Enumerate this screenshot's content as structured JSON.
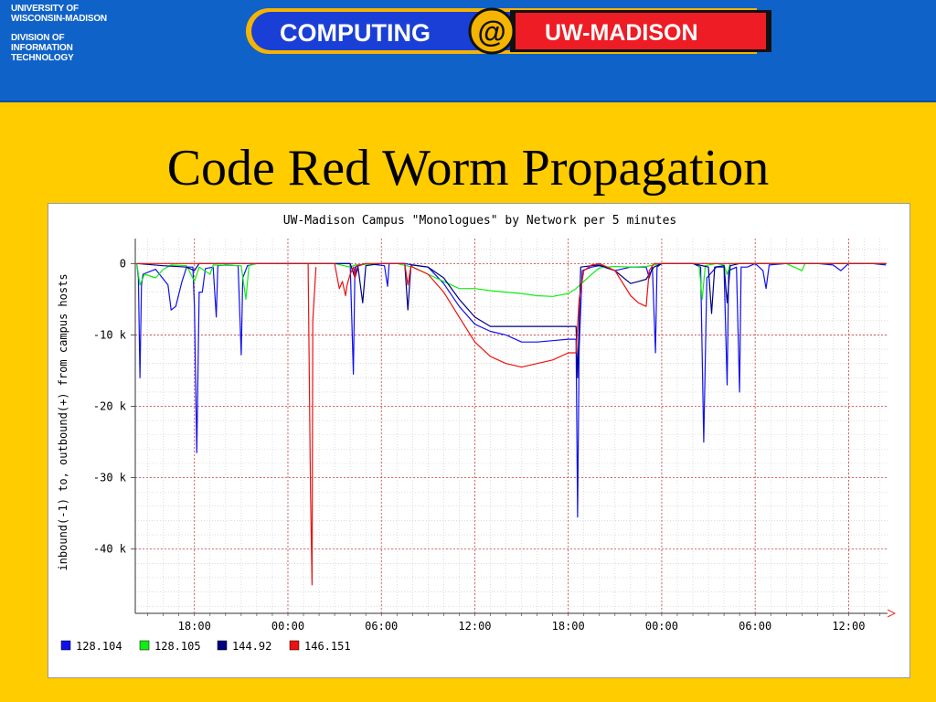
{
  "header": {
    "university_line1": "UNIVERSITY OF",
    "university_line2": "WISCONSIN-MADISON",
    "division_line1": "DIVISION OF",
    "division_line2": "INFORMATION",
    "division_line3": "TECHNOLOGY",
    "logo_left": "COMPUTING",
    "logo_at": "@",
    "logo_right": "UW-MADISON"
  },
  "slide": {
    "title": "Code Red Worm Propagation"
  },
  "colors": {
    "background": "#ffcc00",
    "banner": "#0f62c8",
    "logo_blue": "#1a3fd6",
    "logo_red": "#ee1c24",
    "logo_gold": "#f5b400"
  },
  "chart_data": {
    "type": "line",
    "title": "UW-Madison Campus \"Monologues\" by Network per 5 minutes",
    "ylabel": "inbound(-1) to, outbound(+) from campus hosts",
    "xlabel": "",
    "x_ticks": [
      "18:00",
      "00:00",
      "06:00",
      "12:00",
      "18:00",
      "00:00",
      "06:00",
      "12:00"
    ],
    "x_tick_hours": [
      18,
      24,
      30,
      36,
      42,
      48,
      54,
      60
    ],
    "xlim": [
      14.2,
      62.5
    ],
    "y_ticks": [
      0,
      -10000,
      -20000,
      -30000,
      -40000
    ],
    "y_tick_labels": [
      "0",
      "-10 k",
      "-20 k",
      "-30 k",
      "-40 k"
    ],
    "ylim": [
      -49000,
      3500
    ],
    "grid": true,
    "legend_position": "bottom",
    "series": [
      {
        "name": "128.104",
        "color": "#1010ee",
        "points": [
          [
            14.3,
            0
          ],
          [
            14.4,
            -2000
          ],
          [
            14.5,
            -16000
          ],
          [
            14.6,
            -3000
          ],
          [
            14.7,
            -1500
          ],
          [
            15.5,
            -800
          ],
          [
            16.3,
            -3000
          ],
          [
            16.5,
            -6500
          ],
          [
            16.8,
            -6000
          ],
          [
            17.2,
            -2500
          ],
          [
            17.5,
            -500
          ],
          [
            17.9,
            -500
          ],
          [
            18,
            -6000
          ],
          [
            18.15,
            -26500
          ],
          [
            18.3,
            -4000
          ],
          [
            18.5,
            -4000
          ],
          [
            18.7,
            -700
          ],
          [
            19.2,
            -500
          ],
          [
            19.4,
            -7500
          ],
          [
            19.5,
            -300
          ],
          [
            20,
            -200
          ],
          [
            20.8,
            -300
          ],
          [
            21,
            -12800
          ],
          [
            21.1,
            -2000
          ],
          [
            21.4,
            -300
          ],
          [
            22,
            0
          ],
          [
            24,
            0
          ],
          [
            28,
            0
          ],
          [
            28.2,
            -15500
          ],
          [
            28.3,
            -500
          ],
          [
            29,
            0
          ],
          [
            30.2,
            -300
          ],
          [
            30.4,
            -3200
          ],
          [
            30.5,
            0
          ],
          [
            31.5,
            0
          ],
          [
            32,
            -200
          ],
          [
            33,
            -500
          ],
          [
            34,
            -2800
          ],
          [
            35,
            -6000
          ],
          [
            36,
            -8500
          ],
          [
            37,
            -9500
          ],
          [
            38,
            -10000
          ],
          [
            39,
            -11000
          ],
          [
            40,
            -11000
          ],
          [
            41,
            -10800
          ],
          [
            42,
            -10600
          ],
          [
            42.5,
            -10600
          ],
          [
            42.6,
            -35500
          ],
          [
            42.7,
            -12000
          ],
          [
            42.9,
            -1000
          ],
          [
            43.5,
            -500
          ],
          [
            44,
            -300
          ],
          [
            45,
            -1000
          ],
          [
            46,
            -500
          ],
          [
            47,
            -500
          ],
          [
            47.2,
            -2000
          ],
          [
            47.4,
            -500
          ],
          [
            47.6,
            -12500
          ],
          [
            47.7,
            -500
          ],
          [
            48,
            0
          ],
          [
            50,
            0
          ],
          [
            50.5,
            -500
          ],
          [
            50.7,
            -25000
          ],
          [
            50.9,
            -2000
          ],
          [
            51.5,
            -500
          ],
          [
            52,
            -500
          ],
          [
            52.2,
            -17000
          ],
          [
            52.3,
            -1000
          ],
          [
            52.8,
            -500
          ],
          [
            53,
            -18000
          ],
          [
            53.1,
            -500
          ],
          [
            53.5,
            -500
          ],
          [
            54,
            0
          ],
          [
            54.5,
            -1000
          ],
          [
            54.7,
            -3500
          ],
          [
            54.9,
            -200
          ],
          [
            56,
            0
          ],
          [
            58,
            0
          ],
          [
            59,
            -200
          ],
          [
            59.5,
            -1000
          ],
          [
            60,
            0
          ],
          [
            61.5,
            0
          ],
          [
            62.4,
            -200
          ]
        ]
      },
      {
        "name": "128.105",
        "color": "#11ee11",
        "points": [
          [
            14.3,
            0
          ],
          [
            14.5,
            -3000
          ],
          [
            14.8,
            -1500
          ],
          [
            15.5,
            -2000
          ],
          [
            16,
            -800
          ],
          [
            16.5,
            -200
          ],
          [
            17.5,
            -300
          ],
          [
            18,
            -2500
          ],
          [
            18.3,
            -500
          ],
          [
            19,
            -1500
          ],
          [
            19.2,
            -200
          ],
          [
            21,
            -300
          ],
          [
            21.3,
            -5000
          ],
          [
            21.5,
            -300
          ],
          [
            22,
            0
          ],
          [
            24,
            0
          ],
          [
            27,
            0
          ],
          [
            28,
            -500
          ],
          [
            28.3,
            -200
          ],
          [
            30,
            0
          ],
          [
            31,
            0
          ],
          [
            32,
            -500
          ],
          [
            33,
            -1500
          ],
          [
            34,
            -2500
          ],
          [
            35,
            -3500
          ],
          [
            36,
            -3500
          ],
          [
            37,
            -3800
          ],
          [
            38,
            -4000
          ],
          [
            39,
            -4200
          ],
          [
            40,
            -4500
          ],
          [
            41,
            -4600
          ],
          [
            42,
            -4200
          ],
          [
            42.5,
            -3500
          ],
          [
            43,
            -2500
          ],
          [
            43.5,
            -1500
          ],
          [
            44,
            -600
          ],
          [
            45,
            -400
          ],
          [
            46,
            -500
          ],
          [
            47,
            -400
          ],
          [
            48,
            0
          ],
          [
            50,
            0
          ],
          [
            50.4,
            -200
          ],
          [
            50.6,
            -5000
          ],
          [
            50.8,
            -300
          ],
          [
            51.5,
            0
          ],
          [
            52,
            -200
          ],
          [
            52.2,
            -1500
          ],
          [
            52.4,
            0
          ],
          [
            54,
            0
          ],
          [
            56,
            0
          ],
          [
            57,
            -1000
          ],
          [
            57.2,
            0
          ],
          [
            60,
            0
          ],
          [
            62.4,
            0
          ]
        ]
      },
      {
        "name": "144.92",
        "color": "#000080",
        "points": [
          [
            14.3,
            0
          ],
          [
            16,
            -300
          ],
          [
            17.5,
            -500
          ],
          [
            18,
            -1000
          ],
          [
            18.3,
            0
          ],
          [
            20,
            0
          ],
          [
            22,
            0
          ],
          [
            24,
            0
          ],
          [
            28,
            0
          ],
          [
            28.3,
            -2000
          ],
          [
            28.5,
            -500
          ],
          [
            28.8,
            -5500
          ],
          [
            29,
            -300
          ],
          [
            30,
            0
          ],
          [
            31.5,
            0
          ],
          [
            31.7,
            -6500
          ],
          [
            31.9,
            -300
          ],
          [
            32,
            -200
          ],
          [
            33,
            -500
          ],
          [
            34,
            -2000
          ],
          [
            35,
            -5000
          ],
          [
            36,
            -7500
          ],
          [
            37,
            -8800
          ],
          [
            38,
            -8800
          ],
          [
            39,
            -8800
          ],
          [
            40,
            -8800
          ],
          [
            41,
            -8800
          ],
          [
            42,
            -8800
          ],
          [
            42.5,
            -8800
          ],
          [
            42.6,
            -16000
          ],
          [
            42.8,
            -500
          ],
          [
            43.5,
            -300
          ],
          [
            44,
            -200
          ],
          [
            45,
            -1000
          ],
          [
            46,
            -2800
          ],
          [
            46.5,
            -2500
          ],
          [
            47,
            -2200
          ],
          [
            47.5,
            -500
          ],
          [
            48,
            0
          ],
          [
            50,
            0
          ],
          [
            51,
            -500
          ],
          [
            51.2,
            -7000
          ],
          [
            51.4,
            -500
          ],
          [
            52,
            -300
          ],
          [
            52.2,
            -5500
          ],
          [
            52.4,
            -300
          ],
          [
            53,
            0
          ],
          [
            54,
            0
          ],
          [
            56,
            0
          ],
          [
            58,
            0
          ],
          [
            60,
            0
          ],
          [
            62.4,
            0
          ]
        ]
      },
      {
        "name": "146.151",
        "color": "#ee1111",
        "points": [
          [
            14.3,
            0
          ],
          [
            16,
            0
          ],
          [
            18,
            0
          ],
          [
            20,
            0
          ],
          [
            22,
            0
          ],
          [
            24,
            0
          ],
          [
            27,
            0
          ],
          [
            27.3,
            -3500
          ],
          [
            27.5,
            -2500
          ],
          [
            27.7,
            -4500
          ],
          [
            27.8,
            -3000
          ],
          [
            28,
            -1500
          ],
          [
            28.2,
            -500
          ],
          [
            28.3,
            -2000
          ],
          [
            28.4,
            -300
          ],
          [
            29,
            0
          ],
          [
            30,
            0
          ],
          [
            31.5,
            0
          ],
          [
            31.7,
            -3000
          ],
          [
            31.9,
            -300
          ],
          [
            32,
            -500
          ],
          [
            33,
            -1500
          ],
          [
            34,
            -4000
          ],
          [
            35,
            -7500
          ],
          [
            36,
            -11000
          ],
          [
            37,
            -13000
          ],
          [
            38,
            -14000
          ],
          [
            39,
            -14500
          ],
          [
            40,
            -14000
          ],
          [
            41,
            -13500
          ],
          [
            42,
            -12500
          ],
          [
            42.5,
            -12500
          ],
          [
            42.7,
            -5000
          ],
          [
            43,
            -1000
          ],
          [
            43.5,
            -200
          ],
          [
            44,
            0
          ],
          [
            45,
            -1000
          ],
          [
            46,
            -4500
          ],
          [
            46.5,
            -5500
          ],
          [
            47,
            -6000
          ],
          [
            47.2,
            -1000
          ],
          [
            47.5,
            0
          ],
          [
            48,
            0
          ],
          [
            54,
            0
          ],
          [
            56,
            0
          ],
          [
            60,
            0
          ],
          [
            62.4,
            0
          ]
        ]
      },
      {
        "name": "",
        "color": "#ee1111",
        "points": [
          [
            25.3,
            0
          ],
          [
            25.45,
            -32000
          ],
          [
            25.55,
            -45000
          ],
          [
            25.6,
            -8000
          ],
          [
            25.8,
            -500
          ]
        ]
      }
    ]
  }
}
